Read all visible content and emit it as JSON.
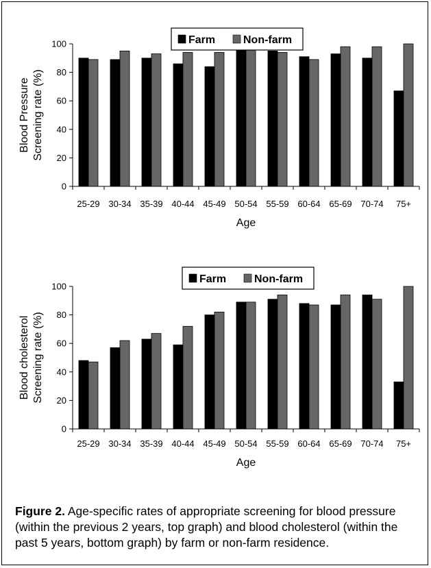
{
  "caption": {
    "label": "Figure 2.",
    "text": "Age-specific rates of appropriate screening for blood pressure (within the previous 2 years, top graph) and blood cholesterol (within the past 5 years, bottom graph) by farm or non-farm residence."
  },
  "colors": {
    "farm": "#000000",
    "nonfarm": "#666666"
  },
  "chart_data": [
    {
      "type": "bar",
      "categories": [
        "25-29",
        "30-34",
        "35-39",
        "40-44",
        "45-49",
        "50-54",
        "55-59",
        "60-64",
        "65-69",
        "70-74",
        "75+"
      ],
      "series": [
        {
          "name": "Farm",
          "values": [
            90,
            89,
            90,
            86,
            84,
            96,
            95,
            91,
            93,
            90,
            67
          ]
        },
        {
          "name": "Non-farm",
          "values": [
            89,
            95,
            93,
            94,
            94,
            97,
            94,
            89,
            98,
            98,
            100
          ]
        }
      ],
      "title": "",
      "xlabel": "Age",
      "ylabel": [
        "Blood Pressure",
        "Screening rate (%)"
      ],
      "ylim": [
        0,
        100
      ],
      "yticks": [
        0,
        20,
        40,
        60,
        80,
        100
      ],
      "grid": false,
      "legend": "top-center"
    },
    {
      "type": "bar",
      "categories": [
        "25-29",
        "30-34",
        "35-39",
        "40-44",
        "45-49",
        "50-54",
        "55-59",
        "60-64",
        "65-69",
        "70-74",
        "75+"
      ],
      "series": [
        {
          "name": "Farm",
          "values": [
            48,
            57,
            63,
            59,
            80,
            89,
            91,
            88,
            87,
            94,
            33
          ]
        },
        {
          "name": "Non-farm",
          "values": [
            47,
            62,
            67,
            72,
            82,
            89,
            94,
            87,
            94,
            91,
            100
          ]
        }
      ],
      "title": "",
      "xlabel": "Age",
      "ylabel": [
        "Blood cholesterol",
        "Screening rate (%)"
      ],
      "ylim": [
        0,
        100
      ],
      "yticks": [
        0,
        20,
        40,
        60,
        80,
        100
      ],
      "grid": false,
      "legend": "top-center"
    }
  ]
}
